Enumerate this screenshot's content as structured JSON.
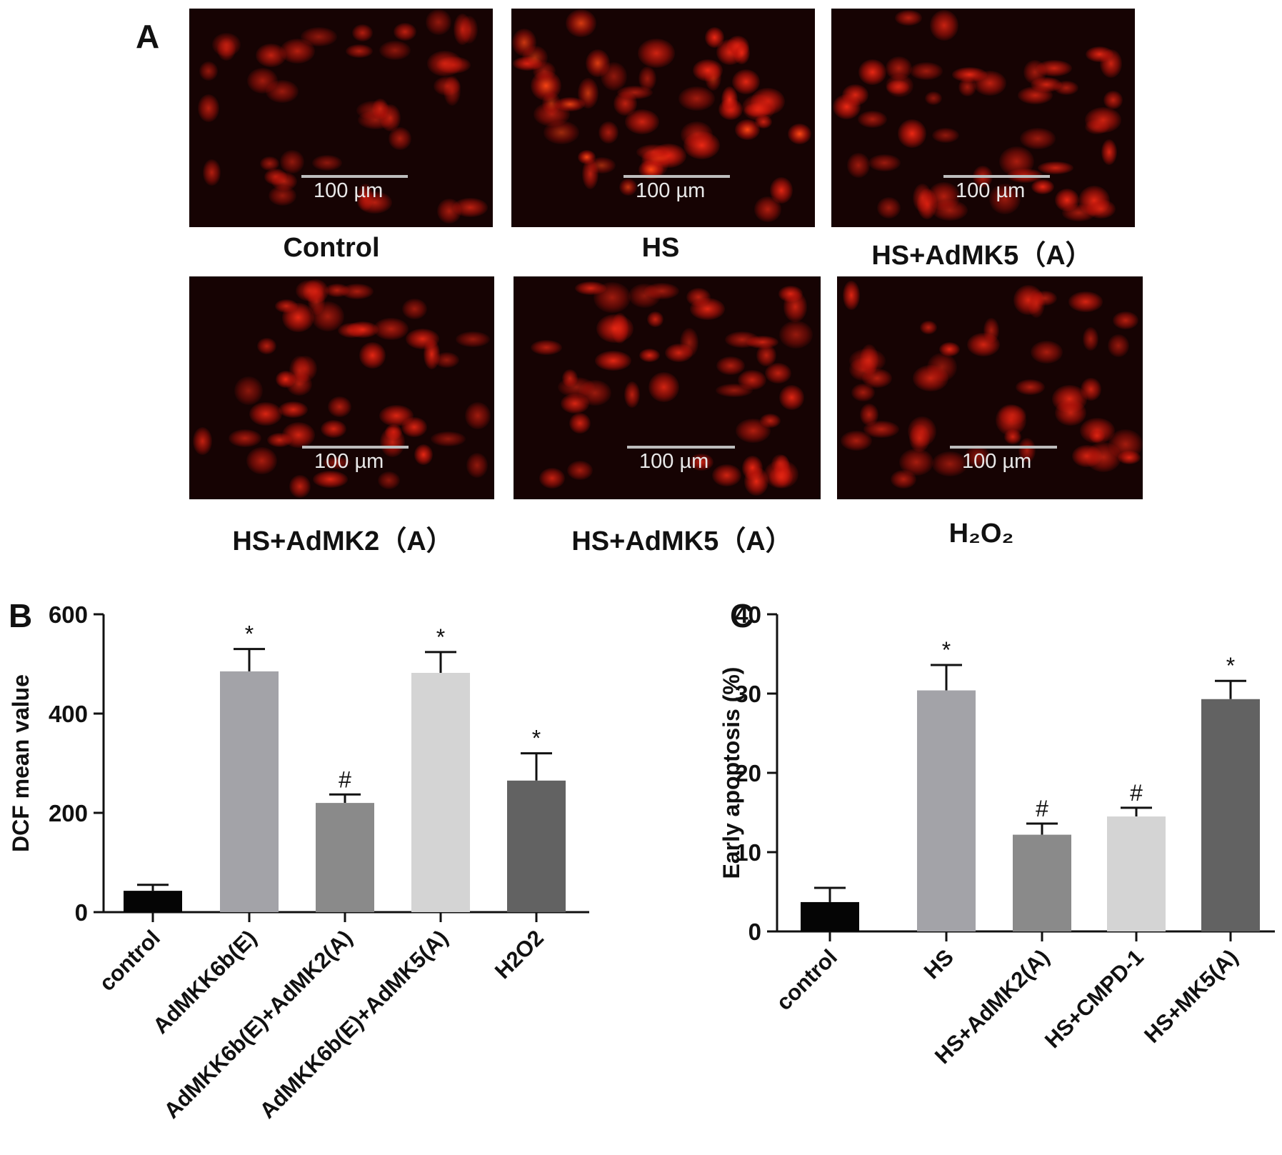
{
  "panel_a": {
    "letter": "A",
    "images": [
      {
        "label": "Control",
        "scale": "100 µm",
        "brightness": 0.45
      },
      {
        "label": "HS",
        "scale": "100 µm",
        "brightness": 1.0
      },
      {
        "label": "HS+AdMK5（A）",
        "scale": "100 µm",
        "brightness": 0.85
      },
      {
        "label": "HS+AdMK2（A）",
        "scale": "100 µm",
        "brightness": 0.8
      },
      {
        "label": "HS+AdMK5（A）",
        "scale": "100 µm",
        "brightness": 0.8
      },
      {
        "label": "H₂O₂",
        "scale": "100 µm",
        "brightness": 0.75
      }
    ]
  },
  "chart_data": [
    {
      "panel": "B",
      "type": "bar",
      "categories": [
        "control",
        "AdMKK6b(E)",
        "AdMKK6b(E)+AdMK2(A)",
        "AdMKK6b(E)+AdMK5(A)",
        "H2O2"
      ],
      "values": [
        43,
        485,
        220,
        482,
        265
      ],
      "errors": [
        12,
        45,
        17,
        42,
        55
      ],
      "annotations": [
        "",
        "*",
        "#",
        "*",
        "*"
      ],
      "colors": [
        "#050505",
        "#a3a3a8",
        "#8a8a8a",
        "#d4d4d4",
        "#626262"
      ],
      "ylabel": "DCF mean value",
      "xlabel": "",
      "ylim": [
        0,
        600
      ],
      "yticks": [
        0,
        200,
        400,
        600
      ]
    },
    {
      "panel": "C",
      "type": "bar",
      "categories": [
        "control",
        "HS",
        "HS+AdMK2(A)",
        "HS+CMPD-1",
        "HS+MK5(A)"
      ],
      "values": [
        3.7,
        30.4,
        12.2,
        14.5,
        29.3
      ],
      "errors": [
        1.8,
        3.2,
        1.4,
        1.1,
        2.3
      ],
      "annotations": [
        "",
        "*",
        "#",
        "#",
        "*"
      ],
      "colors": [
        "#050505",
        "#a3a3a8",
        "#8a8a8a",
        "#d4d4d4",
        "#626262"
      ],
      "ylabel": "Early apoptosis (%)",
      "xlabel": "",
      "ylim": [
        0,
        40
      ],
      "yticks": [
        0,
        10,
        20,
        30,
        40
      ]
    }
  ]
}
